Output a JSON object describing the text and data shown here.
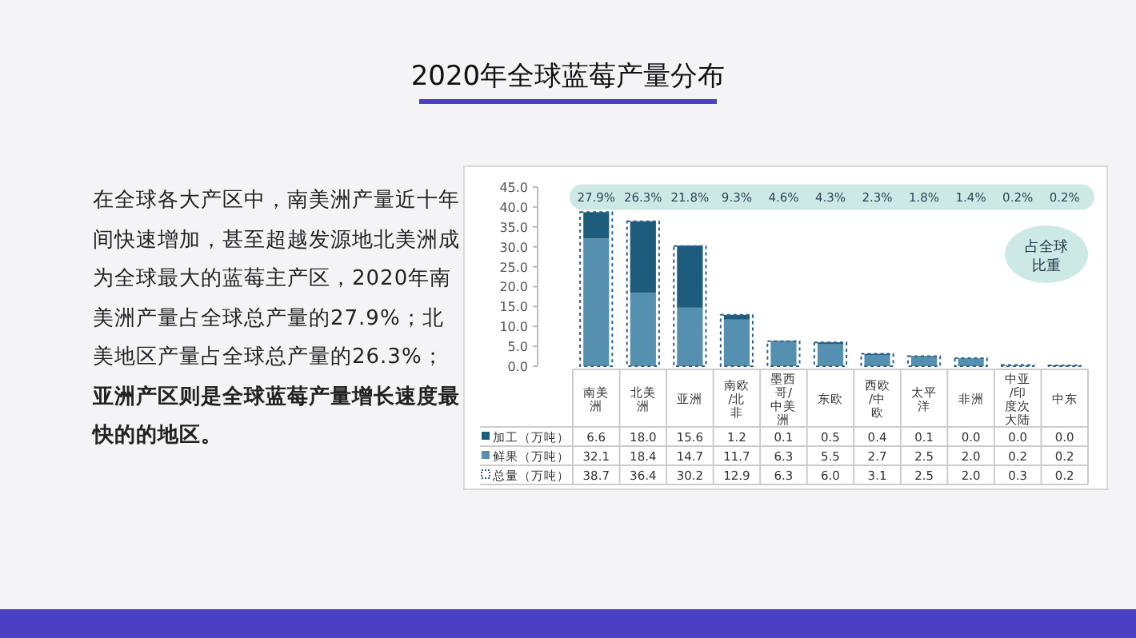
{
  "chart_data": {
    "type": "bar",
    "title": "2020年全球蓝莓产量分布",
    "legend": "bottom left",
    "grid": false,
    "categories": [
      "南美洲",
      "北美洲",
      "亚洲",
      "南欧/北非",
      "墨西哥/中美洲",
      "东欧",
      "西欧/中欧",
      "太平洋",
      "非洲",
      "中亚/印度次大陆",
      "中东"
    ],
    "series": [
      {
        "name": "鲜果（万吨）",
        "color": "#5590b0",
        "values": [
          32.1,
          18.4,
          14.7,
          11.7,
          6.3,
          5.5,
          2.7,
          2.5,
          2.0,
          0.2,
          0.2
        ],
        "value_labels": [
          "32.1",
          "18.4",
          "14.7",
          "11.7",
          "6.3",
          "5.5",
          "2.7",
          "2.5",
          "2.0",
          "0.2",
          "0.2"
        ]
      },
      {
        "name": "加工（万吨）",
        "color": "#1d5c7c",
        "base": [
          32.1,
          18.4,
          14.7,
          11.7,
          6.3,
          5.5,
          2.7,
          2.5,
          null,
          null,
          null
        ],
        "values": [
          6.6,
          18.0,
          15.6,
          1.2,
          0.1,
          0.5,
          0.4,
          0.1,
          0.0,
          0.0,
          0.0
        ],
        "value_labels": [
          "6.6",
          "18.0",
          "15.6",
          "1.2",
          "0.1",
          "0.5",
          "0.4",
          "0.1",
          "0.0",
          "0.0",
          "0.0"
        ]
      },
      {
        "name": "总量（万吨）",
        "type": "bar",
        "color": "#2f5f8f",
        "line_style": "dashed",
        "values": [
          38.7,
          36.4,
          30.2,
          12.9,
          6.3,
          6.0,
          3.1,
          2.5,
          2.0,
          0.3,
          0.2
        ],
        "value_labels": [
          "38.7",
          "36.4",
          "30.2",
          "12.9",
          "6.3",
          "6.0",
          "3.1",
          "2.5",
          "2.0",
          "0.3",
          "0.2"
        ]
      }
    ],
    "ylim": [
      0,
      45
    ],
    "yticks": [
      {
        "value": 0,
        "label": "0.0"
      },
      {
        "value": 5,
        "label": "5.0"
      },
      {
        "value": 10,
        "label": "10.0"
      },
      {
        "value": 15,
        "label": "15.0"
      },
      {
        "value": 20,
        "label": "20.0"
      },
      {
        "value": 25,
        "label": "25.0"
      },
      {
        "value": 30,
        "label": "30.0"
      },
      {
        "value": 35,
        "label": "35.0"
      },
      {
        "value": 40,
        "label": "40.0"
      },
      {
        "value": 45,
        "label": "45.0"
      }
    ],
    "annotations": [
      "在全球各大产区中，南美洲产量近十年间快速增加，甚至超越发源地北美洲成为全球最大的蓝莓主产区，2020年南美洲产量占全球总产量的27.9%；北美地区产量占全球总产量的26.3%；",
      "亚洲产区则是全球蓝莓产量增长速度最快的的地区。",
      "占全球比重",
      "27.9%",
      "26.3%",
      "21.8%",
      "9.3%",
      "4.6%",
      "4.3%",
      "2.3%",
      "1.8%",
      "1.4%",
      "0.2%",
      "0.2%"
    ]
  }
}
